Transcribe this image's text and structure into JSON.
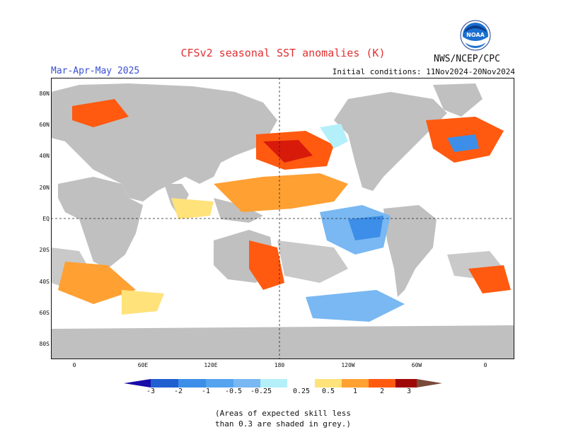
{
  "header": {
    "title": "CFSv2 seasonal SST anomalies (K)",
    "agency": "NWS/NCEP/CPC",
    "season": "Mar-Apr-May 2025",
    "initial_conditions": "Initial conditions: 11Nov2024-20Nov2024",
    "logo_text": "NOAA"
  },
  "map": {
    "lat_labels": [
      "80N",
      "60N",
      "40N",
      "20N",
      "EQ",
      "20S",
      "40S",
      "60S",
      "80S"
    ],
    "lon_labels": [
      "0",
      "60E",
      "120E",
      "180",
      "120W",
      "60W",
      "0"
    ],
    "land_color": "#c0c0c0",
    "ocean_color": "#ffffff"
  },
  "colorbar": {
    "levels": [
      "-3",
      "-2",
      "-1",
      "-0.5",
      "-0.25",
      "0.25",
      "0.5",
      "1",
      "2",
      "3"
    ],
    "colors": [
      "#1a0ca8",
      "#1f5fd0",
      "#3c8ee8",
      "#79b8f2",
      "#b4f0fa",
      "#ffffff",
      "#ffe27a",
      "#ffa033",
      "#ff5a10",
      "#d81a0a",
      "#a00808",
      "#7a4a3a"
    ]
  },
  "note": {
    "line1": "(Areas of expected skill less",
    "line2": "than 0.3 are shaded in grey.)"
  }
}
